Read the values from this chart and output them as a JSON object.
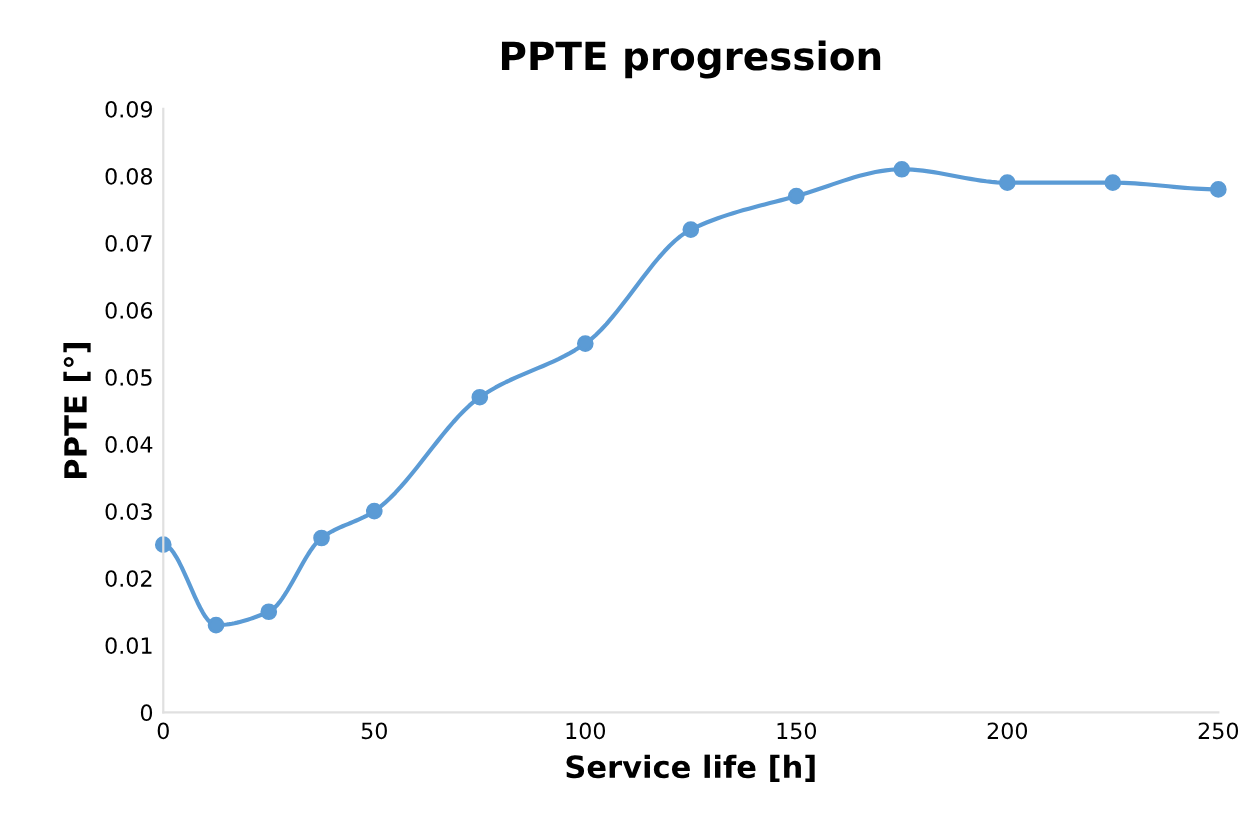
{
  "chart_data": {
    "type": "line",
    "title": "PPTE progression",
    "xlabel": "Service life [h]",
    "ylabel": "PPTE [°]",
    "x": [
      0,
      12.5,
      25,
      37.5,
      50,
      75,
      100,
      125,
      150,
      175,
      200,
      225,
      250
    ],
    "series": [
      {
        "color": "#5b9bd5",
        "values": [
          0.025,
          0.013,
          0.015,
          0.026,
          0.03,
          0.047,
          0.055,
          0.072,
          0.077,
          0.081,
          0.079,
          0.079,
          0.078
        ]
      }
    ],
    "xlim": [
      0,
      250
    ],
    "xticks": [
      0,
      50,
      100,
      150,
      200,
      250
    ],
    "ylim": [
      0,
      0.09
    ],
    "yticks": [
      0,
      0.01,
      0.02,
      0.03,
      0.04,
      0.05,
      0.06,
      0.07,
      0.08,
      0.09
    ],
    "grid": false,
    "marker": "circle",
    "line_style": "solid"
  }
}
